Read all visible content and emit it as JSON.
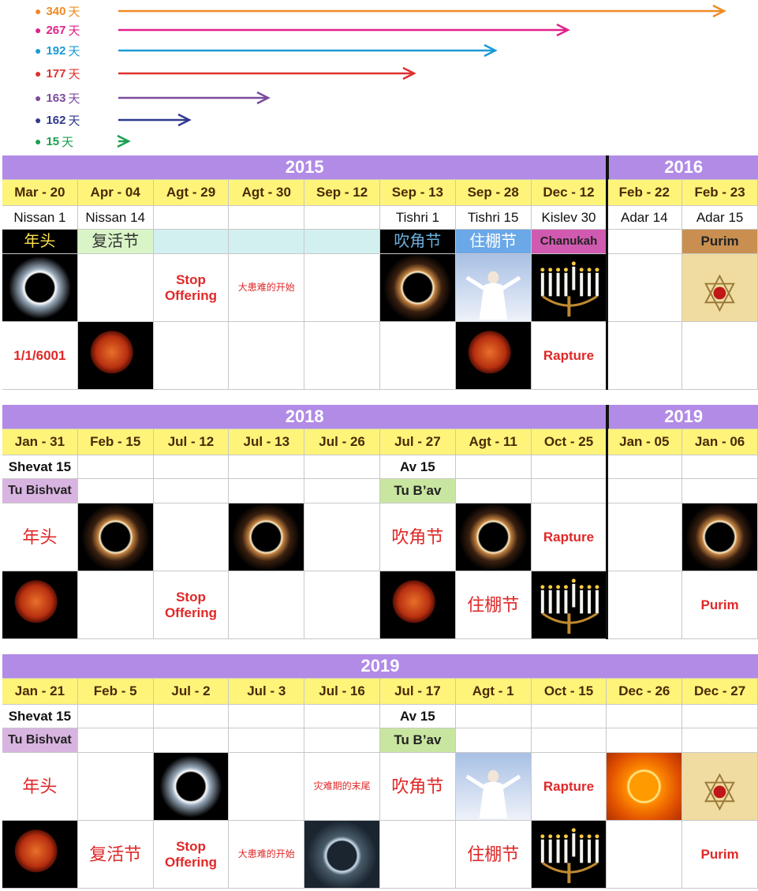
{
  "legend": {
    "unit": "天",
    "items": [
      {
        "days": 340,
        "color": "#f08a24"
      },
      {
        "days": 267,
        "color": "#e0218a"
      },
      {
        "days": 192,
        "color": "#1a9ad6"
      },
      {
        "days": 177,
        "color": "#e03030"
      },
      {
        "days": 163,
        "color": "#7d4b9e"
      },
      {
        "days": 162,
        "color": "#2e3a8c"
      },
      {
        "days": 15,
        "color": "#1aa050"
      }
    ]
  },
  "tables": [
    {
      "years": [
        {
          "label": "2015",
          "span": 8
        },
        {
          "label": "2016",
          "span": 2
        }
      ],
      "dates": [
        "Mar - 20",
        "Apr - 04",
        "Agt - 29",
        "Agt - 30",
        "Sep - 12",
        "Sep - 13",
        "Sep - 28",
        "Dec - 12",
        "Feb - 22",
        "Feb - 23"
      ],
      "rows": [
        [
          "Nissan 1",
          "Nissan 14",
          null,
          null,
          null,
          "Tishri 1",
          "Tishri 15",
          "Kislev 30",
          "Adar 14",
          "Adar 15"
        ],
        [
          "年头",
          "复活节",
          null,
          null,
          null,
          "吹角节",
          "住棚节",
          "Chanukah",
          null,
          "Purim"
        ],
        [
          null,
          null,
          "Stop Offering",
          "大患难的开始",
          null,
          null,
          null,
          null,
          null,
          null
        ],
        [
          "1/1/6001",
          null,
          null,
          null,
          null,
          null,
          null,
          "Rapture",
          null,
          null
        ]
      ]
    },
    {
      "years": [
        {
          "label": "2018",
          "span": 8
        },
        {
          "label": "2019",
          "span": 2
        }
      ],
      "dates": [
        "Jan - 31",
        "Feb - 15",
        "Jul - 12",
        "Jul - 13",
        "Jul - 26",
        "Jul - 27",
        "Agt - 11",
        "Oct - 25",
        "Jan - 05",
        "Jan - 06"
      ],
      "rows": [
        [
          "Shevat 15",
          null,
          null,
          null,
          null,
          "Av 15",
          null,
          null,
          null,
          null
        ],
        [
          "Tu Bishvat",
          null,
          null,
          null,
          null,
          "Tu B’av",
          null,
          null,
          null,
          null
        ],
        [
          "年头",
          null,
          null,
          null,
          null,
          "吹角节",
          null,
          "Rapture",
          null,
          null
        ],
        [
          null,
          null,
          "Stop Offering",
          null,
          null,
          null,
          "住棚节",
          null,
          null,
          "Purim"
        ]
      ]
    },
    {
      "years": [
        {
          "label": "2019",
          "span": 10
        }
      ],
      "dates": [
        "Jan - 21",
        "Feb - 5",
        "Jul - 2",
        "Jul - 3",
        "Jul - 16",
        "Jul - 17",
        "Agt - 1",
        "Oct - 15",
        "Dec - 26",
        "Dec - 27"
      ],
      "rows": [
        [
          "Shevat 15",
          null,
          null,
          null,
          null,
          "Av 15",
          null,
          null,
          null,
          null
        ],
        [
          "Tu Bishvat",
          null,
          null,
          null,
          null,
          "Tu B’av",
          null,
          null,
          null,
          null
        ],
        [
          "年头",
          null,
          null,
          null,
          "灾难期的末尾",
          "吹角节",
          null,
          "Rapture",
          null,
          null
        ],
        [
          null,
          "复活节",
          "Stop Offering",
          "大患难的开始",
          null,
          null,
          "住棚节",
          null,
          null,
          "Purim"
        ]
      ]
    }
  ]
}
